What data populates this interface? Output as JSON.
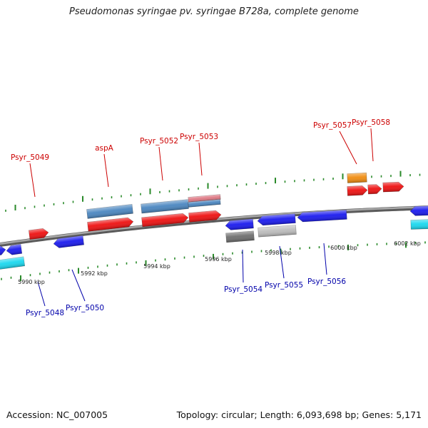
{
  "title": "Pseudomonas syringae pv. syringae B728a, complete genome",
  "footer": {
    "accession": "Accession: NC_007005",
    "summary": "Topology: circular; Length: 6,093,698 bp; Genes: 5,171"
  },
  "colors": {
    "backbone": "#8a8a8a",
    "tick": "#2a8a2a",
    "label_top": "#cc0000",
    "label_bottom": "#0000aa",
    "red": "#ee1111",
    "blue": "#1a1aee",
    "steel": "#4a86c0",
    "cyan": "#19d8ef",
    "orange": "#f08c10",
    "dark_gray": "#6e6e6e",
    "light_gray": "#bcbcbc",
    "pink": "#e07a86"
  },
  "scale_labels": [
    "5990 kbp",
    "5992 kbp",
    "5994 kbp",
    "5996 kbp",
    "5998 kbp",
    "6000 kbp",
    "6002 kbp"
  ],
  "gene_labels_top": [
    "Psyr_5049",
    "aspA",
    "Psyr_5052",
    "Psyr_5053",
    "Psyr_5057",
    "Psyr_5058"
  ],
  "gene_labels_bottom": [
    "Psyr_5048",
    "Psyr_5050",
    "Psyr_5054",
    "Psyr_5055",
    "Psyr_5056"
  ]
}
